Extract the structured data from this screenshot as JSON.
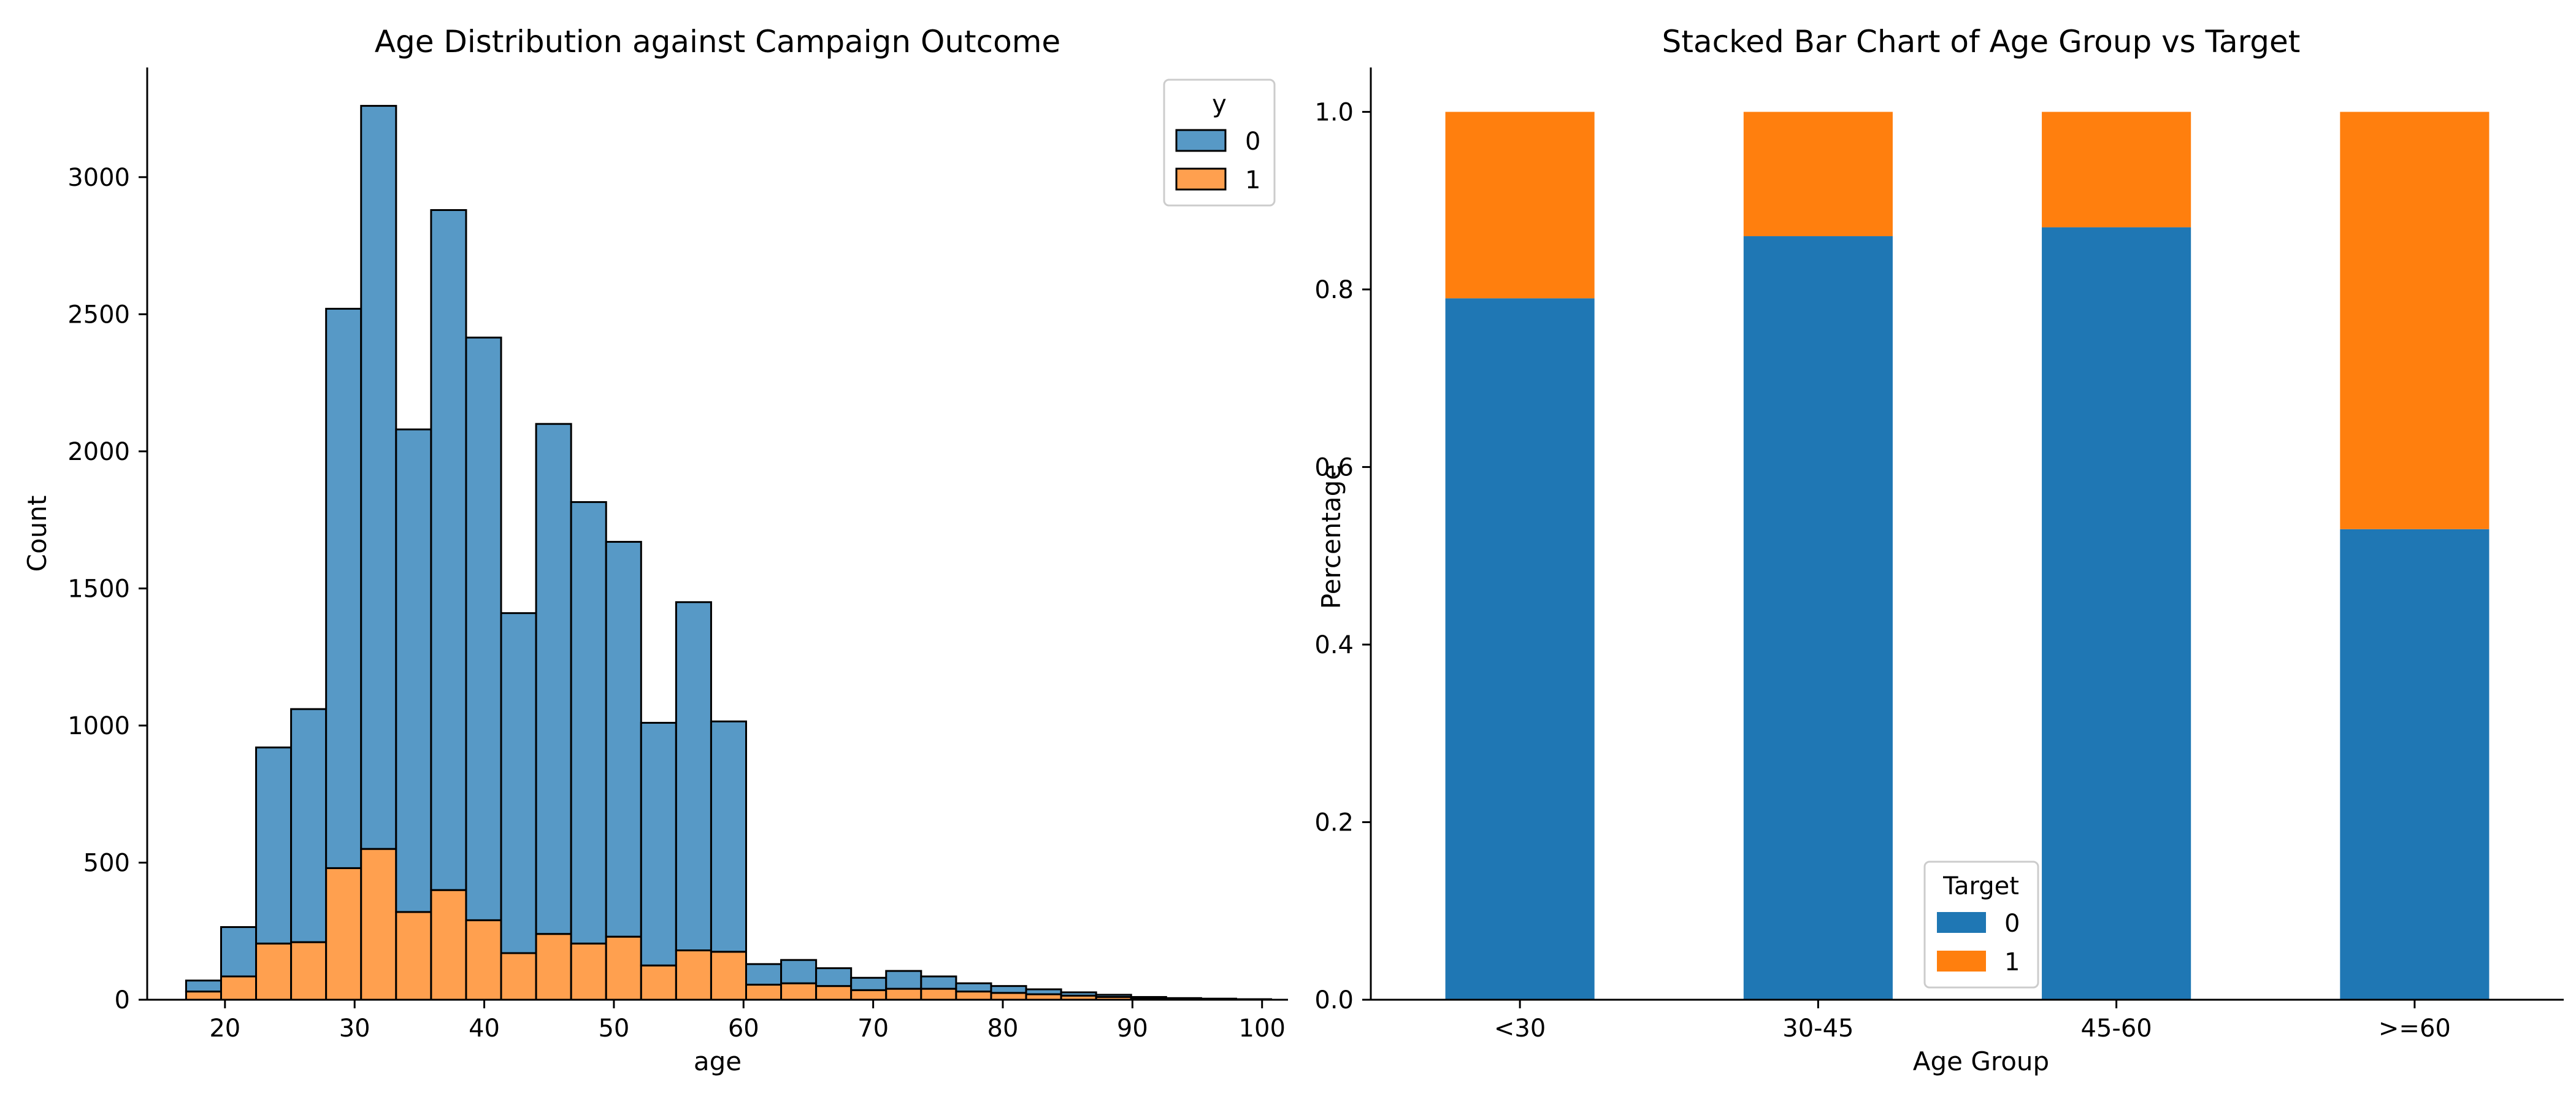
{
  "chart_data": [
    {
      "type": "bar",
      "subtype": "stacked-histogram",
      "title": "Age Distribution against Campaign Outcome",
      "xlabel": "age",
      "ylabel": "Count",
      "xlim": [
        14,
        102
      ],
      "ylim": [
        0,
        3400
      ],
      "xticks": [
        20,
        30,
        40,
        50,
        60,
        70,
        80,
        90,
        100
      ],
      "yticks": [
        0,
        500,
        1000,
        1500,
        2000,
        2500,
        3000
      ],
      "bin_start": 17,
      "bin_width": 2.7,
      "legend": {
        "title": "y",
        "position": "upper-right"
      },
      "series": [
        {
          "name": "0",
          "color": "#5799C6",
          "values": [
            40,
            180,
            715,
            850,
            2040,
            2710,
            1760,
            2480,
            2125,
            1240,
            1860,
            1610,
            1440,
            885,
            1270,
            840,
            75,
            85,
            65,
            45,
            65,
            45,
            30,
            25,
            18,
            12,
            8,
            5,
            3,
            2,
            1
          ]
        },
        {
          "name": "1",
          "color": "#FFA04F",
          "values": [
            30,
            85,
            205,
            210,
            480,
            550,
            320,
            400,
            290,
            170,
            240,
            205,
            230,
            125,
            180,
            175,
            55,
            60,
            50,
            35,
            40,
            40,
            30,
            25,
            20,
            15,
            10,
            5,
            3,
            2,
            1
          ]
        }
      ]
    },
    {
      "type": "bar",
      "subtype": "stacked",
      "title": "Stacked Bar Chart of Age Group vs Target",
      "xlabel": "Age Group",
      "ylabel": "Percentage",
      "ylim": [
        0,
        1.05
      ],
      "yticks": [
        0.0,
        0.2,
        0.4,
        0.6,
        0.8,
        1.0
      ],
      "categories": [
        "<30",
        "30-45",
        "45-60",
        ">=60"
      ],
      "legend": {
        "title": "Target",
        "position": "lower-center"
      },
      "series": [
        {
          "name": "0",
          "color": "#1F77B4",
          "values": [
            0.79,
            0.86,
            0.87,
            0.53
          ]
        },
        {
          "name": "1",
          "color": "#FF7F0E",
          "values": [
            0.21,
            0.14,
            0.13,
            0.47
          ]
        }
      ]
    }
  ]
}
